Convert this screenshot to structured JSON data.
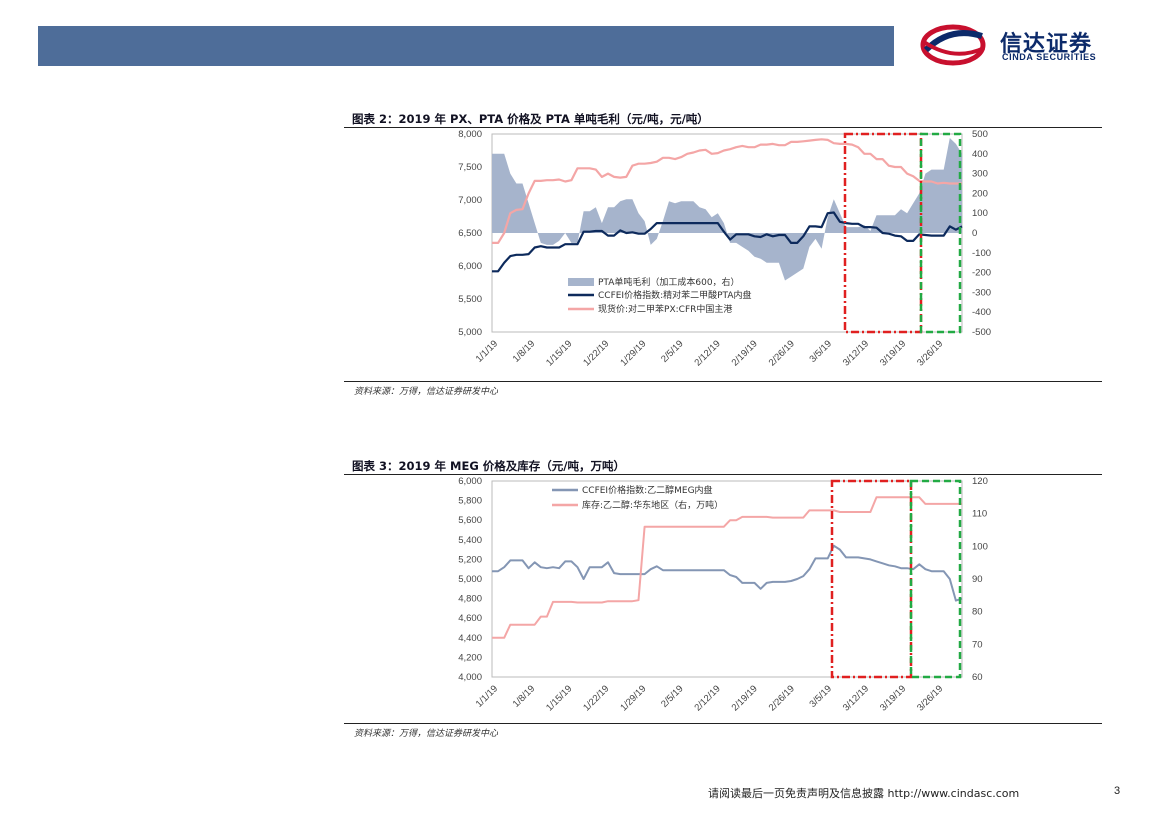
{
  "header": {
    "logo_cn": "信达证券",
    "logo_en": "CINDA SECURITIES"
  },
  "figure2": {
    "title": "图表 2：2019 年 PX、PTA 价格及 PTA 单吨毛利（元/吨，元/吨）",
    "source": "资料来源：万得，信达证券研发中心"
  },
  "figure3": {
    "title": "图表 3：2019 年 MEG 价格及库存（元/吨，万吨）",
    "source": "资料来源：万得，信达证券研发中心"
  },
  "footer": {
    "text": "请阅读最后一页免责声明及信息披露 http://www.cindasc.com",
    "page": "3"
  },
  "colors": {
    "navy": "#0d2a5c",
    "pink": "#f4a6a6",
    "area": "#a6b4cc",
    "meg_line": "#8496b4",
    "red_box": "#e02020",
    "green_box": "#22aa44",
    "header": "#4e6d99"
  },
  "chart_data": [
    {
      "type": "line",
      "title": "2019 年 PX、PTA 价格及 PTA 单吨毛利",
      "x_tick_labels": [
        "1/1/19",
        "1/8/19",
        "1/15/19",
        "1/22/19",
        "1/29/19",
        "2/5/19",
        "2/12/19",
        "2/19/19",
        "2/26/19",
        "3/5/19",
        "3/12/19",
        "3/19/19",
        "3/26/19"
      ],
      "ylim": [
        5000,
        8000
      ],
      "y_ticks": [
        "8,000",
        "7,500",
        "7,000",
        "6,500",
        "6,000",
        "5,500",
        "5,000"
      ],
      "y2lim": [
        -500,
        500
      ],
      "y2_ticks": [
        "500",
        "400",
        "300",
        "200",
        "100",
        "0",
        "-100",
        "-200",
        "-300",
        "-400",
        "-500"
      ],
      "series": [
        {
          "name": "PTA单吨毛利（加工成本600，右）",
          "kind": "area",
          "axis": "right",
          "values": [
            400,
            400,
            400,
            300,
            250,
            250,
            150,
            50,
            -50,
            -60,
            -60,
            -40,
            0,
            -50,
            -50,
            110,
            110,
            130,
            50,
            130,
            130,
            160,
            170,
            170,
            100,
            60,
            -60,
            -30,
            60,
            160,
            150,
            160,
            160,
            160,
            130,
            120,
            80,
            100,
            50,
            -50,
            -50,
            -70,
            -90,
            -120,
            -130,
            -150,
            -150,
            -150,
            -240,
            -220,
            -200,
            -180,
            -70,
            -30,
            -80,
            80,
            170,
            100,
            30,
            30,
            30,
            40,
            10,
            90,
            90,
            90,
            90,
            120,
            100,
            150,
            200,
            300,
            320,
            320,
            320,
            480,
            450,
            400
          ]
        },
        {
          "name": "CCFEI价格指数:精对苯二甲酸PTA内盘",
          "kind": "line",
          "axis": "left",
          "values": [
            5920,
            5920,
            6050,
            6150,
            6170,
            6170,
            6180,
            6280,
            6300,
            6280,
            6280,
            6280,
            6330,
            6330,
            6330,
            6520,
            6520,
            6530,
            6530,
            6460,
            6460,
            6540,
            6500,
            6510,
            6490,
            6490,
            6560,
            6650,
            6650,
            6650,
            6650,
            6650,
            6650,
            6650,
            6650,
            6650,
            6650,
            6650,
            6520,
            6400,
            6480,
            6480,
            6480,
            6450,
            6440,
            6480,
            6450,
            6470,
            6470,
            6350,
            6350,
            6450,
            6600,
            6600,
            6590,
            6800,
            6810,
            6670,
            6650,
            6640,
            6640,
            6590,
            6590,
            6580,
            6500,
            6490,
            6460,
            6450,
            6380,
            6380,
            6480,
            6470,
            6460,
            6460,
            6460,
            6600,
            6550,
            6600
          ]
        },
        {
          "name": "现货价:对二甲苯PX:CFR中国主港",
          "kind": "line",
          "axis": "left",
          "values": [
            6350,
            6350,
            6500,
            6800,
            6850,
            6860,
            7100,
            7290,
            7290,
            7300,
            7300,
            7310,
            7280,
            7300,
            7480,
            7480,
            7480,
            7460,
            7350,
            7400,
            7350,
            7340,
            7350,
            7520,
            7550,
            7550,
            7560,
            7580,
            7640,
            7640,
            7620,
            7650,
            7700,
            7720,
            7750,
            7760,
            7700,
            7710,
            7750,
            7770,
            7800,
            7820,
            7800,
            7800,
            7840,
            7840,
            7850,
            7830,
            7830,
            7880,
            7880,
            7890,
            7900,
            7910,
            7920,
            7910,
            7860,
            7850,
            7850,
            7840,
            7800,
            7700,
            7700,
            7620,
            7620,
            7520,
            7500,
            7500,
            7400,
            7360,
            7290,
            7280,
            7280,
            7250,
            7260,
            7250,
            7250,
            7250
          ]
        }
      ]
    },
    {
      "type": "line",
      "title": "2019 年 MEG 价格及库存",
      "x_tick_labels": [
        "1/1/19",
        "1/8/19",
        "1/15/19",
        "1/22/19",
        "1/29/19",
        "2/5/19",
        "2/12/19",
        "2/19/19",
        "2/26/19",
        "3/5/19",
        "3/12/19",
        "3/19/19",
        "3/26/19"
      ],
      "ylim": [
        4000,
        6000
      ],
      "y_ticks": [
        "6,000",
        "5,800",
        "5,600",
        "5,400",
        "5,200",
        "5,000",
        "4,800",
        "4,600",
        "4,400",
        "4,200",
        "4,000"
      ],
      "y2lim": [
        60,
        120
      ],
      "y2_ticks": [
        "120",
        "110",
        "100",
        "90",
        "80",
        "70",
        "60"
      ],
      "series": [
        {
          "name": "CCFEI价格指数:乙二醇MEG内盘",
          "kind": "line",
          "axis": "left",
          "values": [
            5080,
            5080,
            5120,
            5190,
            5190,
            5190,
            5110,
            5170,
            5120,
            5110,
            5120,
            5110,
            5180,
            5180,
            5120,
            5000,
            5120,
            5120,
            5120,
            5170,
            5060,
            5050,
            5050,
            5050,
            5050,
            5050,
            5100,
            5130,
            5090,
            5090,
            5090,
            5090,
            5090,
            5090,
            5090,
            5090,
            5090,
            5090,
            5090,
            5040,
            5020,
            4960,
            4960,
            4960,
            4900,
            4960,
            4970,
            4970,
            4970,
            4980,
            5000,
            5030,
            5100,
            5210,
            5210,
            5210,
            5340,
            5300,
            5220,
            5220,
            5220,
            5210,
            5200,
            5180,
            5160,
            5140,
            5130,
            5110,
            5110,
            5100,
            5150,
            5100,
            5080,
            5080,
            5080,
            5000,
            4780,
            4800
          ]
        },
        {
          "name": "库存:乙二醇:华东地区（右，万吨）",
          "kind": "line",
          "axis": "right",
          "values": [
            72,
            72,
            72,
            76,
            76,
            76,
            76,
            76,
            78.5,
            78.5,
            83,
            83,
            83,
            83,
            82.8,
            82.8,
            82.8,
            82.8,
            82.8,
            83.2,
            83.2,
            83.2,
            83.2,
            83.2,
            83.5,
            106,
            106,
            106,
            106,
            106,
            106,
            106,
            106,
            106,
            106,
            106,
            106,
            106,
            106,
            108,
            108,
            109,
            109,
            109,
            109,
            109,
            108.8,
            108.8,
            108.8,
            108.8,
            108.8,
            108.8,
            111,
            111,
            111,
            111,
            111,
            110.5,
            110.5,
            110.5,
            110.5,
            110.5,
            110.5,
            115,
            115,
            115,
            115,
            115,
            115,
            115,
            115,
            113,
            113,
            113,
            113,
            113,
            113,
            113
          ]
        }
      ]
    }
  ]
}
